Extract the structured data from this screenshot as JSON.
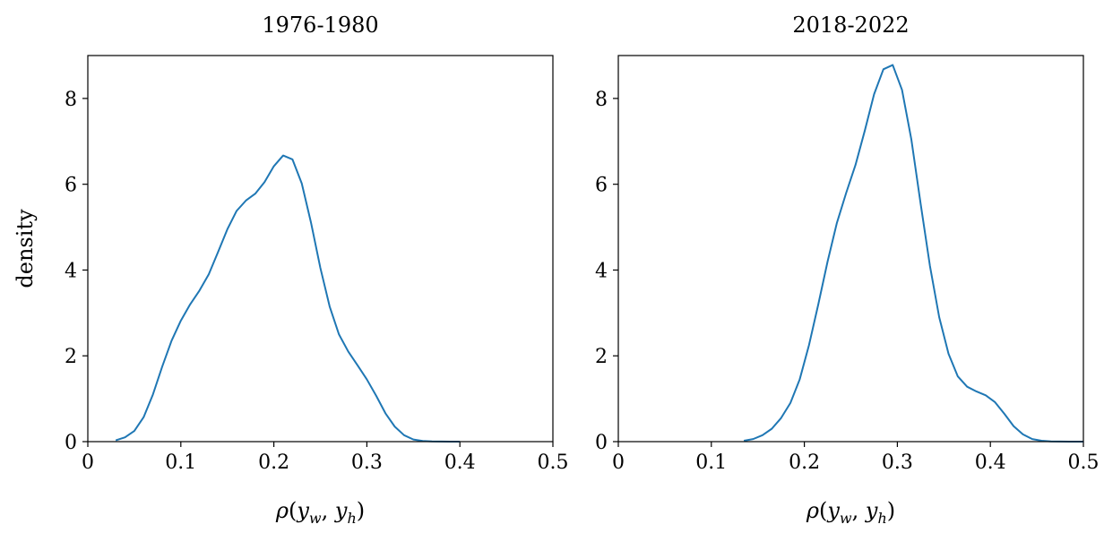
{
  "chart_data": [
    {
      "type": "line",
      "title": "1976-1980",
      "xlabel": "ρ(y_w, y_h)",
      "ylabel": "density",
      "xlim": [
        0,
        0.5
      ],
      "ylim": [
        0,
        9
      ],
      "xticks": [
        0,
        0.1,
        0.2,
        0.3,
        0.4,
        0.5
      ],
      "xtick_labels": [
        "0",
        "0.1",
        "0.2",
        "0.3",
        "0.4",
        "0.5"
      ],
      "yticks": [
        0,
        2,
        4,
        6,
        8
      ],
      "ytick_labels": [
        "0",
        "2",
        "4",
        "6",
        "8"
      ],
      "grid": false,
      "color": "#1f77b4",
      "series": [
        {
          "x": [
            0.03,
            0.04,
            0.05,
            0.06,
            0.07,
            0.08,
            0.09,
            0.1,
            0.11,
            0.12,
            0.13,
            0.14,
            0.15,
            0.16,
            0.17,
            0.18,
            0.19,
            0.2,
            0.21,
            0.22,
            0.23,
            0.24,
            0.25,
            0.26,
            0.27,
            0.28,
            0.29,
            0.3,
            0.31,
            0.32,
            0.33,
            0.34,
            0.35,
            0.36,
            0.37,
            0.38,
            0.39,
            0.4
          ],
          "y": [
            0.03,
            0.1,
            0.25,
            0.57,
            1.1,
            1.75,
            2.35,
            2.82,
            3.2,
            3.52,
            3.9,
            4.42,
            4.95,
            5.38,
            5.62,
            5.78,
            6.05,
            6.42,
            6.67,
            6.58,
            6.02,
            5.1,
            4.05,
            3.15,
            2.5,
            2.1,
            1.78,
            1.45,
            1.07,
            0.66,
            0.35,
            0.15,
            0.05,
            0.015,
            0.005,
            0.002,
            0.001,
            0.0
          ]
        }
      ]
    },
    {
      "type": "line",
      "title": "2018-2022",
      "xlabel": "ρ(y_w, y_h)",
      "ylabel": "",
      "xlim": [
        0,
        0.5
      ],
      "ylim": [
        0,
        9
      ],
      "xticks": [
        0,
        0.1,
        0.2,
        0.3,
        0.4,
        0.5
      ],
      "xtick_labels": [
        "0",
        "0.1",
        "0.2",
        "0.3",
        "0.4",
        "0.5"
      ],
      "yticks": [
        0,
        2,
        4,
        6,
        8
      ],
      "ytick_labels": [
        "0",
        "2",
        "4",
        "6",
        "8"
      ],
      "grid": false,
      "color": "#1f77b4",
      "series": [
        {
          "x": [
            0.135,
            0.145,
            0.155,
            0.165,
            0.175,
            0.185,
            0.195,
            0.205,
            0.215,
            0.225,
            0.235,
            0.245,
            0.255,
            0.265,
            0.275,
            0.285,
            0.295,
            0.305,
            0.315,
            0.325,
            0.335,
            0.345,
            0.355,
            0.365,
            0.375,
            0.385,
            0.395,
            0.405,
            0.415,
            0.425,
            0.435,
            0.445,
            0.455,
            0.465,
            0.475,
            0.485,
            0.495,
            0.5
          ],
          "y": [
            0.02,
            0.06,
            0.15,
            0.3,
            0.55,
            0.9,
            1.45,
            2.25,
            3.2,
            4.2,
            5.1,
            5.8,
            6.45,
            7.25,
            8.1,
            8.68,
            8.78,
            8.2,
            7.05,
            5.55,
            4.1,
            2.9,
            2.05,
            1.52,
            1.28,
            1.17,
            1.08,
            0.92,
            0.65,
            0.36,
            0.17,
            0.06,
            0.02,
            0.006,
            0.002,
            0.001,
            0.0,
            0.0
          ]
        }
      ]
    }
  ]
}
